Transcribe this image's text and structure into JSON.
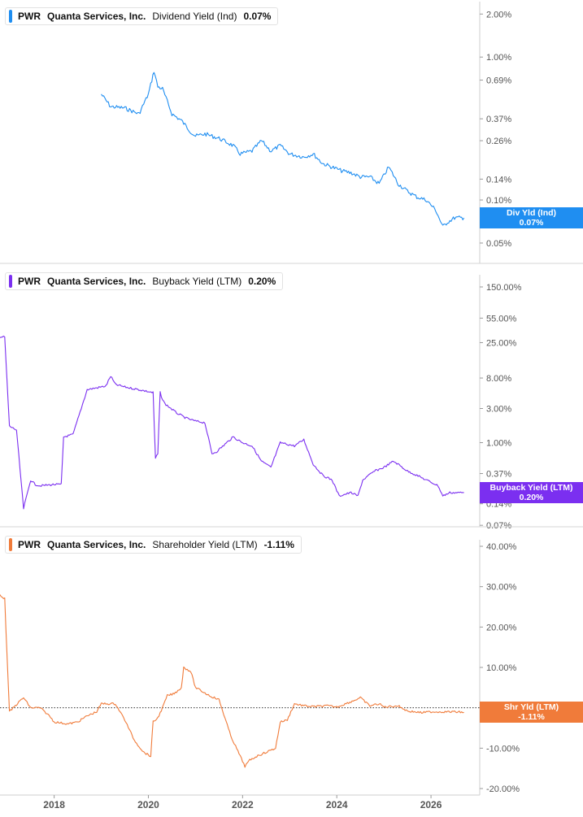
{
  "chart_data": [
    {
      "type": "line",
      "ticker": "PWR",
      "company": "Quanta Services, Inc.",
      "metric": "Dividend Yield (Ind)",
      "current_value": "0.07%",
      "badge_label": "Div Yld (Ind)",
      "badge_value": "0.07%",
      "color": "#1f8ef1",
      "scale": "log",
      "ylim": [
        0.045,
        2.2
      ],
      "y_ticks": [
        2.0,
        1.0,
        0.69,
        0.37,
        0.26,
        0.14,
        0.1,
        0.07,
        0.05
      ],
      "y_tick_labels": [
        "2.00%",
        "1.00%",
        "0.69%",
        "0.37%",
        "0.26%",
        "0.14%",
        "0.10%",
        "0.07%",
        "0.05%"
      ],
      "series": [
        {
          "x": [
            2019.0,
            2019.2,
            2019.5,
            2019.8,
            2020.0,
            2020.12,
            2020.2,
            2020.3,
            2020.5,
            2020.7,
            2020.9,
            2021.0,
            2021.2,
            2021.5,
            2021.8,
            2021.95,
            2022.2,
            2022.4,
            2022.6,
            2022.8,
            2023.0,
            2023.3,
            2023.5,
            2023.7,
            2023.9,
            2024.1,
            2024.3,
            2024.5,
            2024.7,
            2024.9,
            2025.1,
            2025.2,
            2025.3,
            2025.5,
            2025.7,
            2025.9,
            2026.1,
            2026.25,
            2026.35,
            2026.5,
            2026.7
          ],
          "y": [
            0.55,
            0.45,
            0.44,
            0.4,
            0.55,
            0.8,
            0.62,
            0.6,
            0.4,
            0.36,
            0.3,
            0.28,
            0.29,
            0.27,
            0.24,
            0.21,
            0.22,
            0.26,
            0.22,
            0.24,
            0.21,
            0.2,
            0.21,
            0.18,
            0.17,
            0.16,
            0.155,
            0.145,
            0.145,
            0.13,
            0.17,
            0.15,
            0.13,
            0.115,
            0.105,
            0.1,
            0.085,
            0.065,
            0.07,
            0.075,
            0.075
          ]
        }
      ]
    },
    {
      "type": "line",
      "ticker": "PWR",
      "company": "Quanta Services, Inc.",
      "metric": "Buyback Yield (LTM)",
      "current_value": "0.20%",
      "badge_label": "Buyback Yield (LTM)",
      "badge_value": "0.20%",
      "color": "#7b2ff0",
      "scale": "log",
      "ylim": [
        0.065,
        180
      ],
      "y_ticks": [
        150,
        55,
        25,
        8,
        3,
        1,
        0.37,
        0.14,
        0.07
      ],
      "y_tick_labels": [
        "150.00%",
        "55.00%",
        "25.00%",
        "8.00%",
        "3.00%",
        "1.00%",
        "0.37%",
        "0.14%",
        "0.07%"
      ],
      "series": [
        {
          "x": [
            2016.85,
            2016.95,
            2017.05,
            2017.2,
            2017.35,
            2017.5,
            2017.6,
            2017.7,
            2018.0,
            2018.15,
            2018.2,
            2018.4,
            2018.7,
            2019.0,
            2019.1,
            2019.2,
            2019.3,
            2019.5,
            2019.8,
            2020.1,
            2020.15,
            2020.2,
            2020.25,
            2020.3,
            2020.35,
            2020.6,
            2020.8,
            2021.0,
            2021.2,
            2021.35,
            2021.45,
            2021.8,
            2022.0,
            2022.2,
            2022.4,
            2022.6,
            2022.8,
            2022.95,
            2023.1,
            2023.3,
            2023.5,
            2023.7,
            2023.9,
            2024.05,
            2024.3,
            2024.45,
            2024.55,
            2024.8,
            2025.0,
            2025.2,
            2025.3,
            2025.5,
            2025.7,
            2025.9,
            2026.0,
            2026.15,
            2026.25,
            2026.4,
            2026.7
          ],
          "y": [
            30,
            30,
            1.7,
            1.5,
            0.12,
            0.3,
            0.26,
            0.25,
            0.26,
            0.26,
            1.2,
            1.3,
            5.5,
            6.0,
            6.2,
            8.5,
            6.5,
            6.0,
            5.5,
            5.0,
            0.6,
            0.7,
            5.0,
            4.0,
            3.5,
            2.6,
            2.2,
            2.0,
            1.9,
            0.7,
            0.75,
            1.2,
            1.0,
            0.9,
            0.55,
            0.45,
            1.0,
            0.95,
            0.9,
            1.1,
            0.5,
            0.35,
            0.3,
            0.18,
            0.2,
            0.18,
            0.3,
            0.4,
            0.45,
            0.55,
            0.5,
            0.4,
            0.35,
            0.3,
            0.28,
            0.25,
            0.18,
            0.2,
            0.2
          ]
        }
      ]
    },
    {
      "type": "line",
      "ticker": "PWR",
      "company": "Quanta Services, Inc.",
      "metric": "Shareholder Yield (LTM)",
      "current_value": "-1.11%",
      "badge_label": "Shr Yld (LTM)",
      "badge_value": "-1.11%",
      "color": "#f07b3a",
      "scale": "linear",
      "ylim": [
        -20,
        40
      ],
      "y_ticks": [
        40,
        30,
        20,
        10,
        0,
        -10,
        -20
      ],
      "y_tick_labels": [
        "40.00%",
        "30.00%",
        "20.00%",
        "10.00%",
        "0.00%",
        "-10.00%",
        "-20.00%"
      ],
      "series": [
        {
          "x": [
            2016.85,
            2016.95,
            2017.05,
            2017.3,
            2017.35,
            2017.5,
            2017.7,
            2017.9,
            2018.0,
            2018.3,
            2018.5,
            2018.7,
            2018.9,
            2019.0,
            2019.3,
            2019.5,
            2019.7,
            2019.9,
            2020.05,
            2020.1,
            2020.2,
            2020.3,
            2020.4,
            2020.55,
            2020.7,
            2020.75,
            2020.9,
            2021.0,
            2021.15,
            2021.3,
            2021.5,
            2021.75,
            2021.95,
            2022.05,
            2022.15,
            2022.3,
            2022.5,
            2022.7,
            2022.8,
            2022.95,
            2023.1,
            2023.3,
            2023.5,
            2023.8,
            2024.0,
            2024.3,
            2024.5,
            2024.7,
            2024.9,
            2025.0,
            2025.3,
            2025.5,
            2025.8,
            2026.0,
            2026.3,
            2026.5,
            2026.7
          ],
          "y": [
            28,
            27,
            -1,
            2,
            2.5,
            0,
            0,
            -2,
            -3.5,
            -4,
            -3.5,
            -2,
            -1,
            1,
            1,
            -3,
            -8,
            -11,
            -12,
            -3.5,
            -2.5,
            0,
            3,
            3.5,
            5,
            10,
            9,
            5,
            4,
            3,
            2,
            -7,
            -12,
            -14.5,
            -13,
            -12,
            -11,
            -10,
            -3.5,
            -3,
            1,
            0.5,
            0.3,
            0.5,
            0.2,
            1.5,
            2.5,
            0.5,
            1,
            0.2,
            0.5,
            -0.8,
            -1.2,
            -1.0,
            -1.0,
            -1.0,
            -1.11
          ]
        }
      ]
    }
  ],
  "x_axis": {
    "ticks": [
      2018,
      2020,
      2022,
      2024,
      2026
    ],
    "tick_labels": [
      "2018",
      "2020",
      "2022",
      "2024",
      "2026"
    ],
    "range": [
      2016.85,
      2027.0
    ]
  }
}
